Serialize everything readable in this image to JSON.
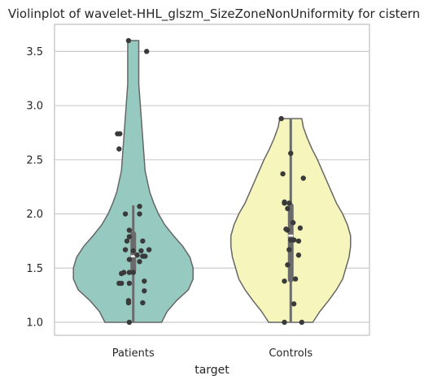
{
  "chart_data": {
    "type": "violin",
    "title": "Violinplot of wavelet-HHL_glszm_SizeZoneNonUniformity for cistern",
    "xlabel": "target",
    "ylabel": "",
    "categories": [
      "Patients",
      "Controls"
    ],
    "ylim": [
      0.88,
      3.75
    ],
    "yticks": [
      1.0,
      1.5,
      2.0,
      2.5,
      3.0,
      3.5
    ],
    "ytick_labels": [
      "1.0",
      "1.5",
      "2.0",
      "2.5",
      "3.0",
      "3.5"
    ],
    "grid": true,
    "colors": {
      "Patients": "#96cac1",
      "Controls": "#f6f6bc",
      "outline": "#666666",
      "points": "#3a3a3a",
      "box": "#6b6b6b",
      "grid": "#cccccc"
    },
    "series": [
      {
        "category": "Patients",
        "min": 1.0,
        "max": 3.6,
        "q1": 1.45,
        "median": 1.61,
        "q3": 1.84,
        "whisker_low": 1.0,
        "whisker_high": 2.08,
        "density": [
          [
            1.0,
            0.36
          ],
          [
            1.1,
            0.43
          ],
          [
            1.2,
            0.55
          ],
          [
            1.3,
            0.7
          ],
          [
            1.4,
            0.76
          ],
          [
            1.5,
            0.76
          ],
          [
            1.6,
            0.72
          ],
          [
            1.7,
            0.63
          ],
          [
            1.8,
            0.51
          ],
          [
            1.9,
            0.4
          ],
          [
            2.0,
            0.32
          ],
          [
            2.1,
            0.26
          ],
          [
            2.2,
            0.21
          ],
          [
            2.3,
            0.18
          ],
          [
            2.4,
            0.15
          ],
          [
            2.5,
            0.14
          ],
          [
            2.6,
            0.13
          ],
          [
            2.7,
            0.12
          ],
          [
            2.8,
            0.11
          ],
          [
            2.9,
            0.1
          ],
          [
            3.0,
            0.09
          ],
          [
            3.1,
            0.08
          ],
          [
            3.2,
            0.07
          ],
          [
            3.3,
            0.07
          ],
          [
            3.4,
            0.07
          ],
          [
            3.5,
            0.07
          ],
          [
            3.6,
            0.07
          ]
        ],
        "points": [
          [
            -0.06,
            3.6
          ],
          [
            0.17,
            3.5
          ],
          [
            -0.2,
            2.74
          ],
          [
            -0.17,
            2.74
          ],
          [
            -0.18,
            2.6
          ],
          [
            0.08,
            2.07
          ],
          [
            -0.1,
            2.0
          ],
          [
            0.08,
            2.0
          ],
          [
            -0.05,
            1.85
          ],
          [
            -0.05,
            1.79
          ],
          [
            -0.08,
            1.75
          ],
          [
            0.12,
            1.75
          ],
          [
            0.2,
            1.67
          ],
          [
            -0.1,
            1.67
          ],
          [
            0.1,
            1.66
          ],
          [
            0.0,
            1.66
          ],
          [
            0.05,
            1.62
          ],
          [
            0.15,
            1.61
          ],
          [
            0.12,
            1.61
          ],
          [
            -0.05,
            1.58
          ],
          [
            0.08,
            1.56
          ],
          [
            -0.12,
            1.46
          ],
          [
            -0.05,
            1.46
          ],
          [
            0.0,
            1.46
          ],
          [
            -0.15,
            1.45
          ],
          [
            0.14,
            1.38
          ],
          [
            -0.18,
            1.36
          ],
          [
            -0.15,
            1.36
          ],
          [
            -0.05,
            1.36
          ],
          [
            0.14,
            1.29
          ],
          [
            -0.06,
            1.2
          ],
          [
            -0.06,
            1.18
          ],
          [
            0.12,
            1.18
          ],
          [
            -0.05,
            1.0
          ]
        ]
      },
      {
        "category": "Controls",
        "min": 1.0,
        "max": 2.88,
        "q1": 1.37,
        "median": 1.8,
        "q3": 2.1,
        "whisker_low": 1.0,
        "whisker_high": 2.88,
        "density": [
          [
            1.0,
            0.28
          ],
          [
            1.1,
            0.37
          ],
          [
            1.2,
            0.48
          ],
          [
            1.3,
            0.58
          ],
          [
            1.4,
            0.66
          ],
          [
            1.5,
            0.7
          ],
          [
            1.6,
            0.74
          ],
          [
            1.7,
            0.76
          ],
          [
            1.8,
            0.76
          ],
          [
            1.9,
            0.72
          ],
          [
            2.0,
            0.66
          ],
          [
            2.1,
            0.58
          ],
          [
            2.2,
            0.52
          ],
          [
            2.3,
            0.46
          ],
          [
            2.4,
            0.4
          ],
          [
            2.5,
            0.34
          ],
          [
            2.6,
            0.27
          ],
          [
            2.7,
            0.21
          ],
          [
            2.8,
            0.16
          ],
          [
            2.88,
            0.14
          ]
        ],
        "points": [
          [
            -0.12,
            2.88
          ],
          [
            0.0,
            2.56
          ],
          [
            -0.1,
            2.37
          ],
          [
            0.16,
            2.33
          ],
          [
            -0.08,
            2.11
          ],
          [
            -0.08,
            2.1
          ],
          [
            -0.02,
            2.1
          ],
          [
            -0.04,
            2.05
          ],
          [
            0.03,
            1.92
          ],
          [
            0.12,
            1.87
          ],
          [
            -0.06,
            1.86
          ],
          [
            -0.04,
            1.85
          ],
          [
            0.04,
            1.76
          ],
          [
            0.0,
            1.76
          ],
          [
            0.1,
            1.75
          ],
          [
            -0.02,
            1.67
          ],
          [
            0.1,
            1.62
          ],
          [
            -0.04,
            1.53
          ],
          [
            0.06,
            1.4
          ],
          [
            -0.08,
            1.38
          ],
          [
            0.04,
            1.17
          ],
          [
            -0.08,
            1.0
          ],
          [
            0.14,
            1.0
          ]
        ]
      }
    ]
  }
}
